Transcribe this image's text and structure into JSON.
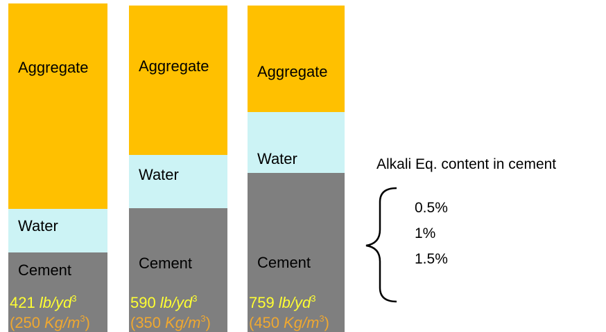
{
  "columns": [
    {
      "segments": [
        "Aggregate",
        "Water",
        "Cement"
      ],
      "imperial": {
        "number": "421",
        "unit": "lb/yd",
        "power": "3"
      },
      "metric": {
        "number": "(250",
        "unit": "Kg/m",
        "power": "3",
        "close": ")"
      }
    },
    {
      "segments": [
        "Aggregate",
        "Water",
        "Cement"
      ],
      "imperial": {
        "number": "590",
        "unit": "lb/yd",
        "power": "3"
      },
      "metric": {
        "number": "(350",
        "unit": "Kg/m",
        "power": "3",
        "close": ")"
      }
    },
    {
      "segments": [
        "Aggregate",
        "Water",
        "Cement"
      ],
      "imperial": {
        "number": "759",
        "unit": "lb/yd",
        "power": "3"
      },
      "metric": {
        "number": "(450",
        "unit": "Kg/m",
        "power": "3",
        "close": ")"
      }
    }
  ],
  "alkali": {
    "title": "Alkali Eq. content in cement",
    "levels": [
      "0.5%",
      "1%",
      "1.5%"
    ]
  }
}
